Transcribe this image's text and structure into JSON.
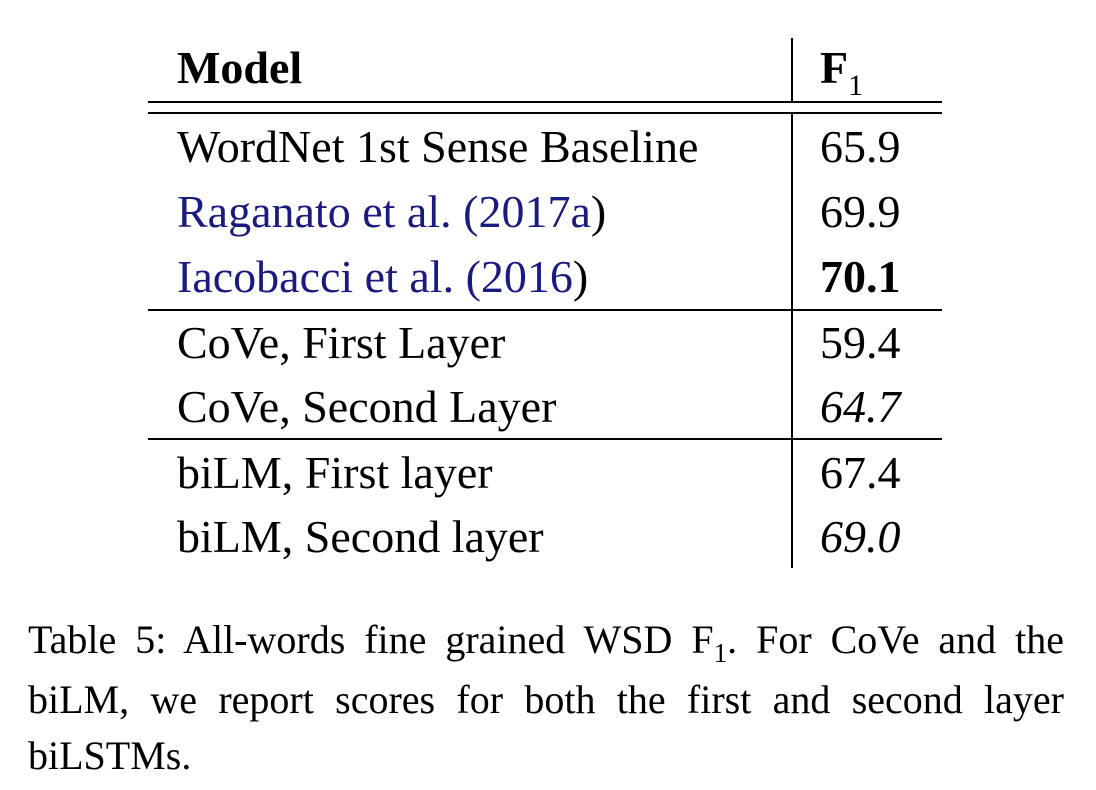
{
  "table": {
    "header": {
      "model": "Model",
      "score_main": "F",
      "score_sub": "1"
    },
    "groups": [
      {
        "rows": [
          {
            "model": "WordNet 1st Sense Baseline",
            "cite": null,
            "score": "65.9",
            "style": "normal"
          },
          {
            "model": "Raganato et al. (",
            "cite": "2017a",
            "close": ")",
            "score": "69.9",
            "style": "normal"
          },
          {
            "model": "Iacobacci et al. (",
            "cite": "2016",
            "close": ")",
            "score": "70.1",
            "style": "bold"
          }
        ]
      },
      {
        "rows": [
          {
            "model": "CoVe, First Layer",
            "score": "59.4",
            "style": "normal"
          },
          {
            "model": "CoVe, Second Layer",
            "score": "64.7",
            "style": "italic"
          }
        ]
      },
      {
        "rows": [
          {
            "model": "biLM, First layer",
            "score": "67.4",
            "style": "normal"
          },
          {
            "model": "biLM, Second layer",
            "score": "69.0",
            "style": "italic"
          }
        ]
      }
    ]
  },
  "caption": {
    "prefix": "Table 5:  All-words fine grained WSD F",
    "sub": "1",
    "suffix": ".  For CoVe and the biLM, we report scores for both the first and second layer biLSTMs."
  },
  "colors": {
    "citation": "#1a1a80",
    "text": "#000000"
  }
}
